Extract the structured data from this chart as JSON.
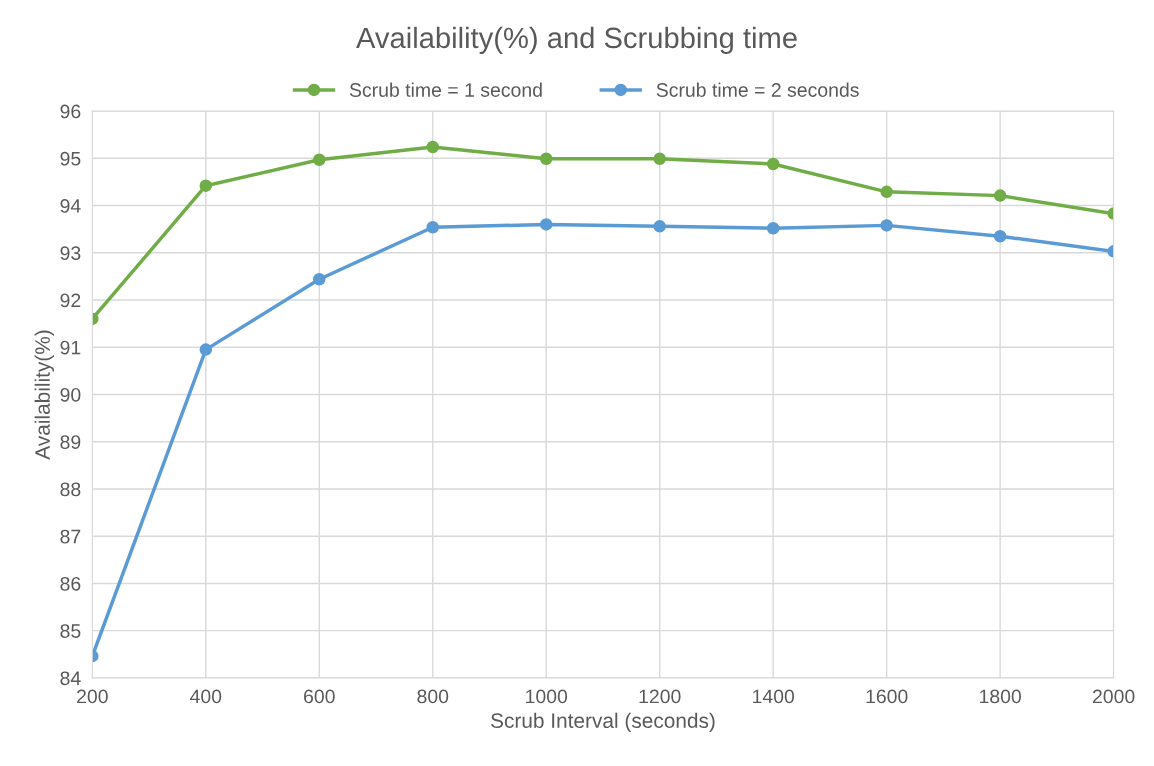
{
  "chart_data": {
    "type": "line",
    "title": "Availability(%) and Scrubbing time",
    "xlabel": "Scrub Interval (seconds)",
    "ylabel": "Availability(%)",
    "x": [
      200,
      400,
      600,
      800,
      1000,
      1200,
      1400,
      1600,
      1800,
      2000
    ],
    "series": [
      {
        "name": "Scrub time = 1 second",
        "color": "#70ad47",
        "values": [
          91.6,
          94.42,
          94.97,
          95.24,
          94.99,
          94.99,
          94.88,
          94.29,
          94.21,
          93.83
        ]
      },
      {
        "name": "Scrub time = 2 seconds",
        "color": "#5b9bd5",
        "values": [
          84.46,
          90.95,
          92.44,
          93.54,
          93.6,
          93.56,
          93.52,
          93.58,
          93.35,
          93.03
        ]
      }
    ],
    "xlim": [
      200,
      2000
    ],
    "xticks": [
      200,
      400,
      600,
      800,
      1000,
      1200,
      1400,
      1600,
      1800,
      2000
    ],
    "ylim": [
      84,
      96
    ],
    "yticks": [
      84,
      85,
      86,
      87,
      88,
      89,
      90,
      91,
      92,
      93,
      94,
      95,
      96
    ],
    "grid": true,
    "legend": "top",
    "marker": "circle",
    "line_style": "solid"
  }
}
